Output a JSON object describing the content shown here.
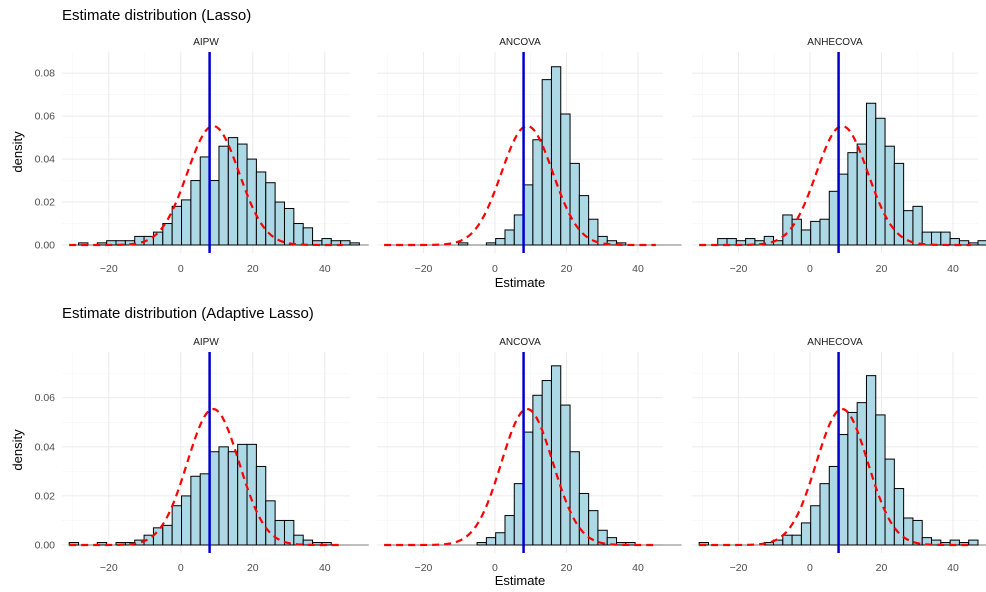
{
  "chart_data": [
    {
      "type": "bar",
      "title": "Estimate distribution (Lasso)",
      "xlabel": "Estimate",
      "ylabel": "density",
      "xlim": [
        -33,
        47
      ],
      "ylim": [
        0,
        0.088
      ],
      "xticks": [
        -20,
        0,
        20,
        40
      ],
      "yticks": [
        0,
        0.02,
        0.04,
        0.06,
        0.08
      ],
      "ytick_labels": [
        "0.00",
        "0.02",
        "0.04",
        "0.06",
        "0.08"
      ],
      "bin_start": -31,
      "bin_width": 2.6,
      "bar_color": "#add8e6",
      "vline": {
        "x": 8,
        "color": "#0000cd"
      },
      "normal_curve": {
        "mean": 9,
        "sd": 7.2,
        "color": "#ff0000",
        "style": "dashed"
      },
      "panels": [
        {
          "name": "AIPW",
          "values": [
            0,
            0.001,
            0,
            0.001,
            0.002,
            0.002,
            0.002,
            0.004,
            0.004,
            0.006,
            0.01,
            0.018,
            0.021,
            0.03,
            0.041,
            0.03,
            0.046,
            0.05,
            0.047,
            0.04,
            0.034,
            0.029,
            0.02,
            0.017,
            0.01,
            0.008,
            0.002,
            0.003,
            0.002,
            0.002,
            0.001,
            0
          ]
        },
        {
          "name": "ANCOVA",
          "values": [
            0,
            0,
            0,
            0,
            0,
            0,
            0,
            0,
            0.001,
            0,
            0,
            0.001,
            0.003,
            0.007,
            0.014,
            0.028,
            0.049,
            0.077,
            0.083,
            0.061,
            0.038,
            0.023,
            0.012,
            0.004,
            0.002,
            0.001,
            0,
            0,
            0,
            0,
            0,
            0
          ]
        },
        {
          "name": "ANHECOVA",
          "values": [
            0,
            0,
            0.003,
            0.003,
            0.002,
            0.003,
            0.002,
            0.004,
            0.002,
            0.014,
            0.012,
            0.007,
            0.011,
            0.012,
            0.025,
            0.033,
            0.043,
            0.047,
            0.066,
            0.059,
            0.046,
            0.038,
            0.016,
            0.018,
            0.006,
            0.006,
            0.006,
            0.003,
            0.002,
            0.001,
            0.002,
            0.002
          ]
        }
      ]
    },
    {
      "type": "bar",
      "title": "Estimate distribution (Adaptive Lasso)",
      "xlabel": "Estimate",
      "ylabel": "density",
      "xlim": [
        -33,
        47
      ],
      "ylim": [
        0,
        0.077
      ],
      "xticks": [
        -20,
        0,
        20,
        40
      ],
      "yticks": [
        0,
        0.02,
        0.04,
        0.06
      ],
      "ytick_labels": [
        "0.00",
        "0.02",
        "0.04",
        "0.06"
      ],
      "bin_start": -31,
      "bin_width": 2.6,
      "bar_color": "#add8e6",
      "vline": {
        "x": 8,
        "color": "#0000cd"
      },
      "normal_curve": {
        "mean": 9,
        "sd": 7.2,
        "color": "#ff0000",
        "style": "dashed"
      },
      "panels": [
        {
          "name": "AIPW",
          "values": [
            0.001,
            0,
            0,
            0.001,
            0,
            0.001,
            0.001,
            0.002,
            0.004,
            0.007,
            0.008,
            0.016,
            0.02,
            0.028,
            0.029,
            0.038,
            0.04,
            0.038,
            0.041,
            0.041,
            0.032,
            0.018,
            0.01,
            0.01,
            0.004,
            0.002,
            0.001,
            0.001,
            0,
            0,
            0,
            0
          ]
        },
        {
          "name": "ANCOVA",
          "values": [
            0,
            0,
            0,
            0,
            0,
            0,
            0,
            0,
            0,
            0,
            0.001,
            0.003,
            0.005,
            0.012,
            0.025,
            0.046,
            0.061,
            0.067,
            0.073,
            0.057,
            0.038,
            0.021,
            0.014,
            0.006,
            0.003,
            0.001,
            0.001,
            0,
            0,
            0,
            0,
            0
          ]
        },
        {
          "name": "ANHECOVA",
          "values": [
            0.001,
            0,
            0,
            0,
            0,
            0,
            0,
            0.001,
            0.002,
            0.004,
            0.004,
            0.009,
            0.016,
            0.025,
            0.032,
            0.045,
            0.054,
            0.058,
            0.069,
            0.053,
            0.035,
            0.023,
            0.011,
            0.01,
            0.003,
            0.002,
            0.001,
            0.002,
            0.001,
            0.002,
            0,
            0.001
          ]
        }
      ]
    }
  ]
}
